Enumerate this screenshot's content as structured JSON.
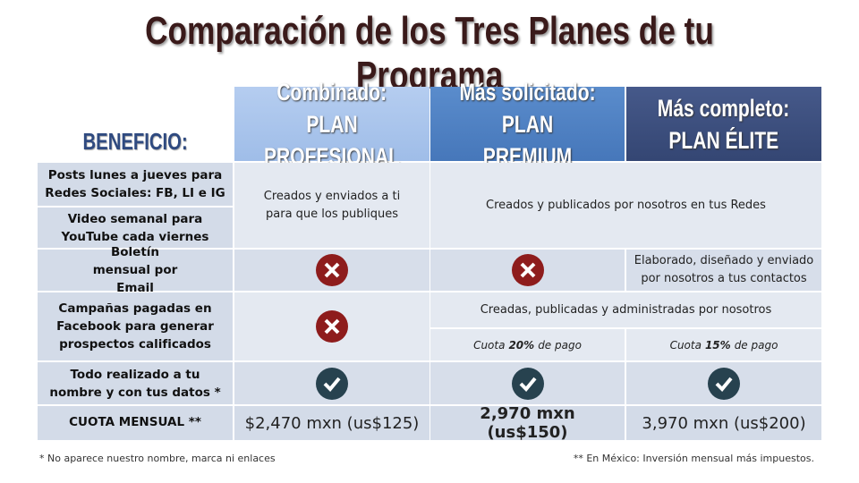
{
  "title": "Comparación de los Tres Planes de tu Programa",
  "header": {
    "corner": "BENEFICIO:",
    "plans": [
      {
        "line1": "Combinado:",
        "line2": "PLAN PROFESIONAL"
      },
      {
        "line1": "Más solicitado:",
        "line2": "PLAN PREMIUM"
      },
      {
        "line1": "Más completo:",
        "line2": "PLAN ÉLITE"
      }
    ]
  },
  "table": {
    "benefits": [
      "Posts lunes a jueves para Redes Sociales: FB, LI e IG",
      "Video semanal para YouTube cada viernes",
      "Boletín mensual por Email",
      "Campañas pagadas en Facebook para generar prospectos calificados",
      "Todo realizado a tu nombre y con tus datos *",
      "CUOTA MENSUAL **"
    ],
    "content": {
      "profesional": "Creados y enviados a ti para que los publiques",
      "premium_elite": "Creados y publicados por nosotros en tus Redes"
    },
    "newsletter_elite": "Elaborado, diseñado y enviado por nosotros a tus contactos",
    "campaigns": {
      "premium_elite": "Creadas, publicadas y administradas por nosotros",
      "fees": [
        {
          "prefix": "Cuota",
          "value": "20%",
          "suffix": "de pago"
        },
        {
          "prefix": "Cuota",
          "value": "15%",
          "suffix": "de pago"
        }
      ]
    },
    "prices": [
      "$2,470 mxn (us$125)",
      "2,970 mxn (us$150)",
      "3,970 mxn (us$200)"
    ]
  },
  "footnotes": [
    "* No aparece nuestro nombre, marca ni enlaces",
    "** En México: Inversión mensual más impuestos."
  ]
}
